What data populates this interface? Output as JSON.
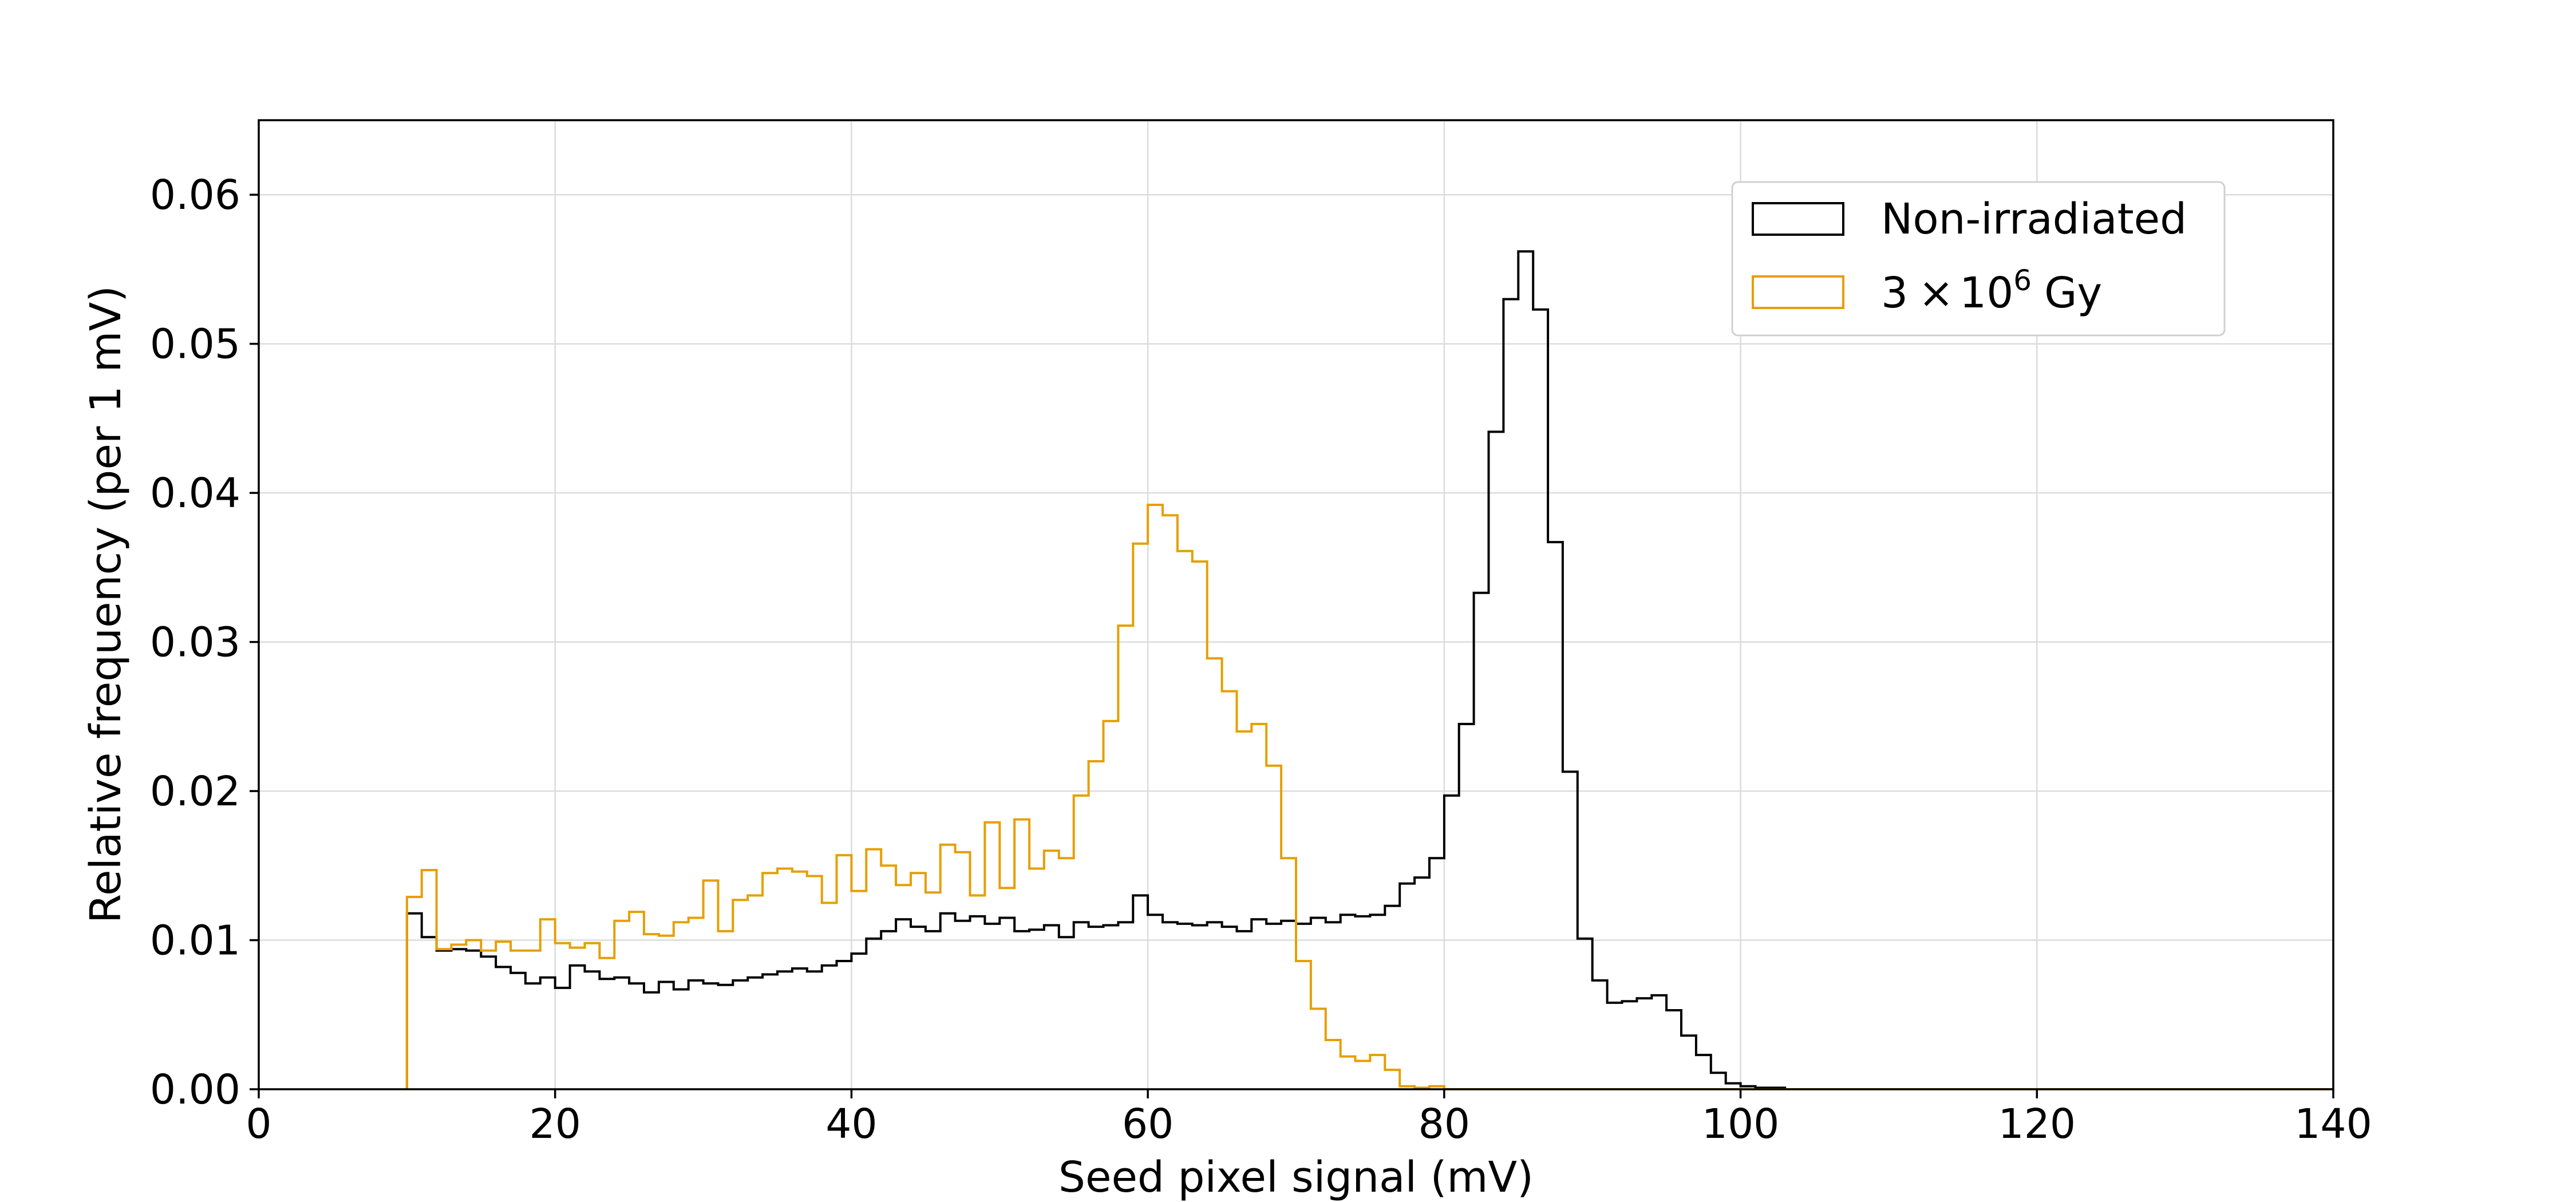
{
  "chart_data": {
    "type": "step-histogram",
    "xlabel": "Seed pixel signal (mV)",
    "ylabel": "Relative frequency (per 1 mV)",
    "xlim": [
      0,
      140
    ],
    "ylim": [
      0,
      0.065
    ],
    "xticks": [
      0,
      20,
      40,
      60,
      80,
      100,
      120,
      140
    ],
    "xtick_labels": [
      "0",
      "20",
      "40",
      "60",
      "80",
      "100",
      "120",
      "140"
    ],
    "yticks": [
      0.0,
      0.01,
      0.02,
      0.03,
      0.04,
      0.05,
      0.06
    ],
    "ytick_labels": [
      "0.00",
      "0.01",
      "0.02",
      "0.03",
      "0.04",
      "0.05",
      "0.06"
    ],
    "grid": true,
    "legend_position": "top-right",
    "bin_width": 1,
    "bin_start": 10,
    "series": [
      {
        "name": "Non-irradiated",
        "color": "#000000",
        "values": [
          0.0118,
          0.0102,
          0.0093,
          0.0094,
          0.0093,
          0.0089,
          0.0082,
          0.0078,
          0.0071,
          0.0075,
          0.0068,
          0.0083,
          0.0079,
          0.0074,
          0.0075,
          0.0071,
          0.0065,
          0.0072,
          0.0067,
          0.0073,
          0.0071,
          0.007,
          0.0073,
          0.0075,
          0.0077,
          0.0079,
          0.0081,
          0.0079,
          0.0083,
          0.0086,
          0.0091,
          0.0101,
          0.0106,
          0.0114,
          0.0109,
          0.0106,
          0.0118,
          0.0113,
          0.0116,
          0.0111,
          0.0115,
          0.0106,
          0.0107,
          0.011,
          0.0102,
          0.0112,
          0.0109,
          0.011,
          0.0112,
          0.013,
          0.0117,
          0.0112,
          0.0111,
          0.011,
          0.0112,
          0.0109,
          0.0106,
          0.0114,
          0.0111,
          0.0113,
          0.0111,
          0.0115,
          0.0112,
          0.0117,
          0.0116,
          0.0117,
          0.0123,
          0.0138,
          0.0142,
          0.0155,
          0.0197,
          0.0245,
          0.0333,
          0.0441,
          0.053,
          0.0562,
          0.0523,
          0.0367,
          0.0213,
          0.0101,
          0.0073,
          0.0058,
          0.0059,
          0.0061,
          0.0063,
          0.0053,
          0.0036,
          0.0023,
          0.0011,
          0.0004,
          0.0002,
          0.0001,
          0.0001,
          0.0,
          0.0,
          0.0
        ],
        "legend_label": "Non-irradiated"
      },
      {
        "name": "3 × 10⁶ Gy",
        "color": "#e69f00",
        "values": [
          0.0129,
          0.0147,
          0.0094,
          0.0097,
          0.01,
          0.0093,
          0.0099,
          0.0093,
          0.0093,
          0.0114,
          0.0098,
          0.0095,
          0.0098,
          0.0088,
          0.0113,
          0.0119,
          0.0104,
          0.0103,
          0.0112,
          0.0115,
          0.014,
          0.0106,
          0.0127,
          0.013,
          0.0145,
          0.0148,
          0.0146,
          0.0143,
          0.0125,
          0.0157,
          0.0133,
          0.0161,
          0.015,
          0.0137,
          0.0145,
          0.0132,
          0.0164,
          0.0159,
          0.013,
          0.0179,
          0.0135,
          0.0181,
          0.0148,
          0.016,
          0.0155,
          0.0197,
          0.022,
          0.0247,
          0.0311,
          0.0366,
          0.0392,
          0.0385,
          0.0361,
          0.0354,
          0.0289,
          0.0267,
          0.024,
          0.0245,
          0.0217,
          0.0155,
          0.0086,
          0.0054,
          0.0033,
          0.0022,
          0.0019,
          0.0023,
          0.0013,
          0.0002,
          0.0001,
          0.0002,
          0.0,
          0.0,
          0.0,
          0.0,
          0.0,
          0.0,
          0.0,
          0.0,
          0.0,
          0.0,
          0.0,
          0.0,
          0.0,
          0.0,
          0.0,
          0.0,
          0.0,
          0.0,
          0.0,
          0.0,
          0.0,
          0.0,
          0.0,
          0.0,
          0.0,
          0.0
        ],
        "legend_label_base": "3",
        "legend_label_times": "×",
        "legend_label_mantissa": "10",
        "legend_label_exponent": "6",
        "legend_label_unit": "Gy"
      }
    ]
  }
}
